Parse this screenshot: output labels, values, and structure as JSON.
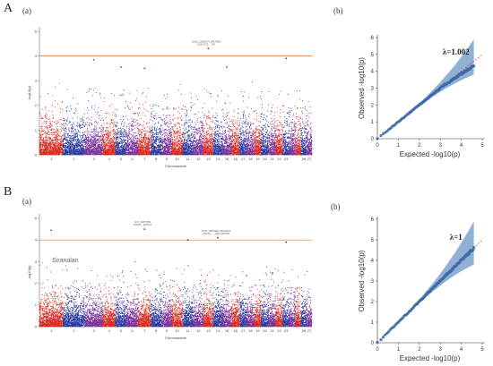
{
  "figure": {
    "rows": [
      {
        "letter": "A",
        "manhattan_label": "(a)",
        "qq_label": "(b)"
      },
      {
        "letter": "B",
        "manhattan_label": "(a)",
        "qq_label": "(b)"
      }
    ],
    "significance_label": "Siranalan"
  },
  "chart_data": [
    {
      "type": "scatter",
      "subtype": "manhattan",
      "panel": "A(a)",
      "xlabel": "Chromosome",
      "ylabel": "-log10(p)",
      "ylim": [
        0,
        5
      ],
      "yticks": [
        0,
        1,
        2,
        3,
        4,
        5
      ],
      "chromosomes": [
        "1",
        "2",
        "3",
        "4",
        "5",
        "6",
        "7",
        "8",
        "9",
        "10",
        "11",
        "12",
        "13",
        "14",
        "15",
        "16",
        "17",
        "18",
        "19",
        "20",
        "21",
        "22",
        "23",
        "24",
        "25",
        "26",
        "27"
      ],
      "x_tick_labels": [
        "1",
        "2",
        "3",
        "4",
        "5",
        "6",
        "7",
        "8",
        "9",
        "10",
        "11",
        "12",
        "13",
        "14",
        "15",
        "16",
        "17",
        "18",
        "19",
        "20",
        "21",
        "22",
        "23",
        "26",
        "27"
      ],
      "chromosome_colors": [
        "#d8281e",
        "#2b3a9e",
        "#7a2f9a"
      ],
      "threshold": 4.0,
      "threshold_color": "#d9703a",
      "top_hits": [
        {
          "chrom": "13",
          "y": 4.3,
          "label": "chr13_21950574_90975952\nLINC1772_...TA7"
        },
        {
          "chrom": "3",
          "y": 3.85,
          "label": ""
        },
        {
          "chrom": "5",
          "y": 3.55,
          "label": ""
        },
        {
          "chrom": "7",
          "y": 3.5,
          "label": ""
        },
        {
          "chrom": "15",
          "y": 3.55,
          "label": ""
        },
        {
          "chrom": "23",
          "y": 3.9,
          "label": ""
        }
      ]
    },
    {
      "type": "scatter",
      "subtype": "qq",
      "panel": "A(b)",
      "xlabel": "Expected -log10(p)",
      "ylabel": "Observed -log10(p)",
      "xlim": [
        0,
        5
      ],
      "ylim": [
        0,
        6
      ],
      "xticks": [
        0,
        1,
        2,
        3,
        4,
        5
      ],
      "yticks": [
        0,
        1,
        2,
        3,
        4,
        5,
        6
      ],
      "lambda_label": "λ=1.002",
      "observed_end": [
        4.6,
        4.3
      ],
      "ci_upper_at_max": 5.9,
      "ci_lower_at_max": 3.8
    },
    {
      "type": "scatter",
      "subtype": "manhattan",
      "panel": "B(a)",
      "xlabel": "Chromosome",
      "ylabel": "-log10(p)",
      "ylim": [
        0,
        5
      ],
      "yticks": [
        0,
        1,
        2,
        3,
        4,
        5
      ],
      "chromosomes": [
        "1",
        "2",
        "3",
        "4",
        "5",
        "6",
        "7",
        "8",
        "9",
        "10",
        "11",
        "12",
        "13",
        "14",
        "15",
        "16",
        "17",
        "18",
        "19",
        "20",
        "21",
        "22",
        "23",
        "24",
        "25",
        "26",
        "27"
      ],
      "x_tick_labels": [
        "1",
        "2",
        "3",
        "4",
        "5",
        "6",
        "7",
        "8",
        "9",
        "10",
        "11",
        "12",
        "13",
        "14",
        "15",
        "16",
        "17",
        "18",
        "19",
        "20",
        "21",
        "22",
        "23",
        "26",
        "27"
      ],
      "chromosome_colors": [
        "#d8281e",
        "#2b3a9e",
        "#7a2f9a"
      ],
      "threshold": 4.0,
      "threshold_color": "#d9703a",
      "top_hits": [
        {
          "chrom": "7",
          "y": 4.5,
          "label": "chr7_11877659\nDGKB_...BUSC3"
        },
        {
          "chrom": "14",
          "y": 4.1,
          "label": "chr14_20601201_91974153\nLINC01_..._0213_09AT36"
        },
        {
          "chrom": "1",
          "y": 4.45,
          "label": ""
        },
        {
          "chrom": "11",
          "y": 4.0,
          "label": ""
        },
        {
          "chrom": "23",
          "y": 3.9,
          "label": ""
        }
      ]
    },
    {
      "type": "scatter",
      "subtype": "qq",
      "panel": "B(b)",
      "xlabel": "Expected -log10(p)",
      "ylabel": "Observed -log10(p)",
      "xlim": [
        0,
        5
      ],
      "ylim": [
        0,
        6
      ],
      "xticks": [
        0,
        1,
        2,
        3,
        4,
        5
      ],
      "yticks": [
        0,
        1,
        2,
        3,
        4,
        5,
        6
      ],
      "lambda_label": "λ=1",
      "observed_end": [
        4.6,
        4.6
      ],
      "ci_upper_at_max": 5.9,
      "ci_lower_at_max": 3.8
    }
  ]
}
